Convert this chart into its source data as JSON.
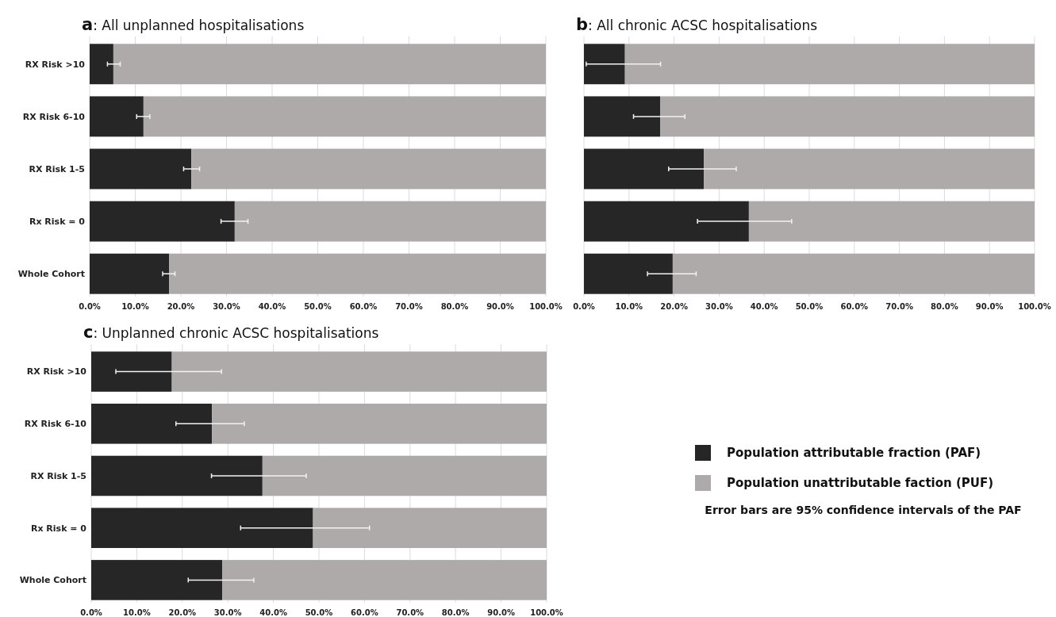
{
  "chart_data": [
    {
      "type": "bar",
      "orientation": "horizontal",
      "stacked": true,
      "title": "a: All unplanned hospitalisations",
      "categories": [
        "RX Risk >10",
        "RX Risk 6-10",
        "RX Risk 1-5",
        "Rx Risk = 0",
        "Whole Cohort"
      ],
      "series": [
        {
          "color": "#262626",
          "values": [
            5.2,
            11.8,
            22.3,
            31.8,
            17.4
          ],
          "errors": [
            [
              3.9,
              6.7
            ],
            [
              10.3,
              13.2
            ],
            [
              20.6,
              24.1
            ],
            [
              28.8,
              34.7
            ],
            [
              16.0,
              18.7
            ]
          ]
        },
        {
          "color": "#aeaaa9",
          "values": [
            94.8,
            88.2,
            77.7,
            68.2,
            82.6
          ]
        }
      ],
      "xlim": [
        0,
        100
      ],
      "xticks": [
        {
          "value": 0,
          "label": "0.0%"
        },
        {
          "value": 10,
          "label": "10.0%"
        },
        {
          "value": 20,
          "label": "20.0%"
        },
        {
          "value": 30,
          "label": "30.0%"
        },
        {
          "value": 40,
          "label": "40.0%"
        },
        {
          "value": 50,
          "label": "50.0%"
        },
        {
          "value": 60,
          "label": "60.0%"
        },
        {
          "value": 70,
          "label": "70.0%"
        },
        {
          "value": 80,
          "label": "80.0%"
        },
        {
          "value": 90,
          "label": "90.0%"
        },
        {
          "value": 100,
          "label": "100.0%"
        }
      ],
      "grid": "x",
      "legend": false
    },
    {
      "type": "bar",
      "orientation": "horizontal",
      "stacked": true,
      "title": "b: All chronic ACSC hospitalisations",
      "categories": [
        null,
        null,
        null,
        null,
        null
      ],
      "series": [
        {
          "color": "#262626",
          "values": [
            9.1,
            16.9,
            26.6,
            36.6,
            19.7
          ],
          "errors": [
            [
              0.5,
              17.0
            ],
            [
              11.0,
              22.4
            ],
            [
              18.8,
              33.8
            ],
            [
              25.2,
              46.1
            ],
            [
              14.1,
              24.9
            ]
          ]
        },
        {
          "color": "#aeaaa9",
          "values": [
            90.9,
            83.1,
            73.4,
            63.4,
            80.3
          ]
        }
      ],
      "xlim": [
        0,
        100
      ],
      "xticks": [
        {
          "value": 0,
          "label": "0.0%"
        },
        {
          "value": 10,
          "label": "10.0%"
        },
        {
          "value": 20,
          "label": "20.0%"
        },
        {
          "value": 30,
          "label": "30.0%"
        },
        {
          "value": 40,
          "label": "40.0%"
        },
        {
          "value": 50,
          "label": "50.0%"
        },
        {
          "value": 60,
          "label": "60.0%"
        },
        {
          "value": 70,
          "label": "70.0%"
        },
        {
          "value": 80,
          "label": "80.0%"
        },
        {
          "value": 90,
          "label": "90.0%"
        },
        {
          "value": 100,
          "label": "100.0%"
        }
      ],
      "grid": "x",
      "legend": false
    },
    {
      "type": "bar",
      "orientation": "horizontal",
      "stacked": true,
      "title": "c: Unplanned chronic ACSC hospitalisations",
      "categories": [
        "RX Risk >10",
        "RX Risk 6-10",
        "RX Risk 1-5",
        "Rx Risk = 0",
        "Whole Cohort"
      ],
      "series": [
        {
          "name": "Population attributable fraction (PAF)",
          "color": "#262626",
          "values": [
            17.7,
            26.5,
            37.6,
            48.7,
            28.8
          ],
          "errors": [
            [
              5.4,
              28.6
            ],
            [
              18.6,
              33.6
            ],
            [
              26.4,
              47.2
            ],
            [
              32.8,
              61.1
            ],
            [
              21.3,
              35.7
            ]
          ]
        },
        {
          "name": "Population unattributable faction (PUF)",
          "color": "#aeaaa9",
          "values": [
            82.3,
            73.5,
            62.4,
            51.3,
            71.2
          ]
        }
      ],
      "xlim": [
        0,
        100
      ],
      "xticks": [
        {
          "value": 0,
          "label": "0.0%"
        },
        {
          "value": 10,
          "label": "10.0%"
        },
        {
          "value": 20,
          "label": "20.0%"
        },
        {
          "value": 30,
          "label": "30.0%"
        },
        {
          "value": 40,
          "label": "40.0%"
        },
        {
          "value": 50,
          "label": "50.0%"
        },
        {
          "value": 60,
          "label": "60.0%"
        },
        {
          "value": 70,
          "label": "70.0%"
        },
        {
          "value": 80,
          "label": "80.0%"
        },
        {
          "value": 90,
          "label": "90.0%"
        },
        {
          "value": 100,
          "label": "100.0%"
        }
      ],
      "grid": "x",
      "legend": "right",
      "annotations": [
        "Error bars are 95% confidence intervals of the PAF"
      ]
    }
  ]
}
